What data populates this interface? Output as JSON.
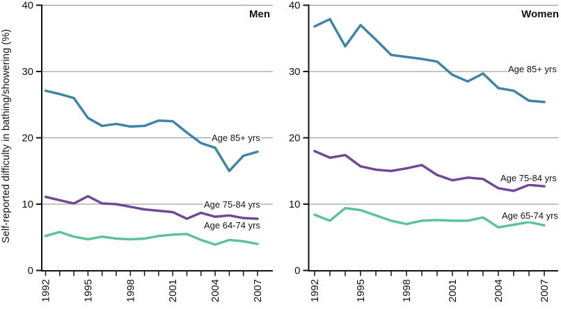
{
  "figure": {
    "kind": "two-panel line chart",
    "background": "#ffffff",
    "gridline_color": "#8a8a8a",
    "axis_color": "#111111",
    "text_color": "#111111"
  },
  "chart_data": [
    {
      "type": "line",
      "title": "Men",
      "xlabel": "",
      "ylabel": "Self-reported difficulty in bathing/showering (%)",
      "ylim": [
        0,
        40
      ],
      "y_ticks": [
        0,
        10,
        20,
        30,
        40
      ],
      "grid": "horizontal gridlines at 10, 20, 30, 40",
      "legend_position": "inline labels at right end of lines",
      "x": [
        1992,
        1993,
        1994,
        1995,
        1996,
        1997,
        1998,
        1999,
        2000,
        2001,
        2002,
        2003,
        2004,
        2005,
        2006,
        2007
      ],
      "x_labeled_ticks": [
        "1992",
        "1995",
        "1998",
        "2001",
        "2004",
        "2007"
      ],
      "series": [
        {
          "name": "Age 85+ yrs",
          "color": "#3C86A4",
          "values": [
            27.1,
            26.6,
            26.0,
            23.0,
            21.8,
            22.1,
            21.7,
            21.8,
            22.6,
            22.5,
            20.8,
            19.2,
            18.5,
            15.0,
            17.3,
            17.9
          ]
        },
        {
          "name": "Age 75-84 yrs",
          "color": "#6F4899",
          "values": [
            11.1,
            10.6,
            10.1,
            11.2,
            10.1,
            10.0,
            9.6,
            9.2,
            9.0,
            8.8,
            7.8,
            8.7,
            8.1,
            8.3,
            7.9,
            7.8
          ]
        },
        {
          "name": "Age 64-74 yrs",
          "color": "#5FC196",
          "values": [
            5.2,
            5.8,
            5.1,
            4.7,
            5.1,
            4.8,
            4.7,
            4.8,
            5.2,
            5.4,
            5.5,
            4.6,
            3.9,
            4.6,
            4.4,
            4.0
          ]
        }
      ]
    },
    {
      "type": "line",
      "title": "Women",
      "xlabel": "",
      "ylabel": "Self-reported difficulty in bathing/showering (%)",
      "ylim": [
        0,
        40
      ],
      "y_ticks": [
        0,
        10,
        20,
        30,
        40
      ],
      "grid": "horizontal gridlines at 10, 20, 30, 40",
      "legend_position": "inline labels at right end of lines",
      "x": [
        1992,
        1993,
        1994,
        1995,
        1996,
        1997,
        1998,
        1999,
        2000,
        2001,
        2002,
        2003,
        2004,
        2005,
        2006,
        2007
      ],
      "x_labeled_ticks": [
        "1992",
        "1995",
        "1998",
        "2001",
        "2004",
        "2007"
      ],
      "series": [
        {
          "name": "Age 85+ yrs",
          "color": "#3C86A4",
          "values": [
            36.8,
            37.9,
            33.8,
            37.0,
            34.8,
            32.5,
            32.2,
            31.9,
            31.5,
            29.5,
            28.5,
            29.7,
            27.5,
            27.1,
            25.6,
            25.4
          ]
        },
        {
          "name": "Age 75-84 yrs",
          "color": "#6F4899",
          "values": [
            18.0,
            17.0,
            17.4,
            15.7,
            15.2,
            15.0,
            15.4,
            15.9,
            14.4,
            13.6,
            14.0,
            13.8,
            12.4,
            12.0,
            12.9,
            12.7
          ]
        },
        {
          "name": "Age 65-74 yrs",
          "color": "#5FC196",
          "values": [
            8.4,
            7.5,
            9.4,
            9.1,
            8.3,
            7.5,
            7.0,
            7.5,
            7.6,
            7.5,
            7.5,
            8.0,
            6.5,
            6.9,
            7.3,
            6.8
          ]
        }
      ]
    }
  ]
}
